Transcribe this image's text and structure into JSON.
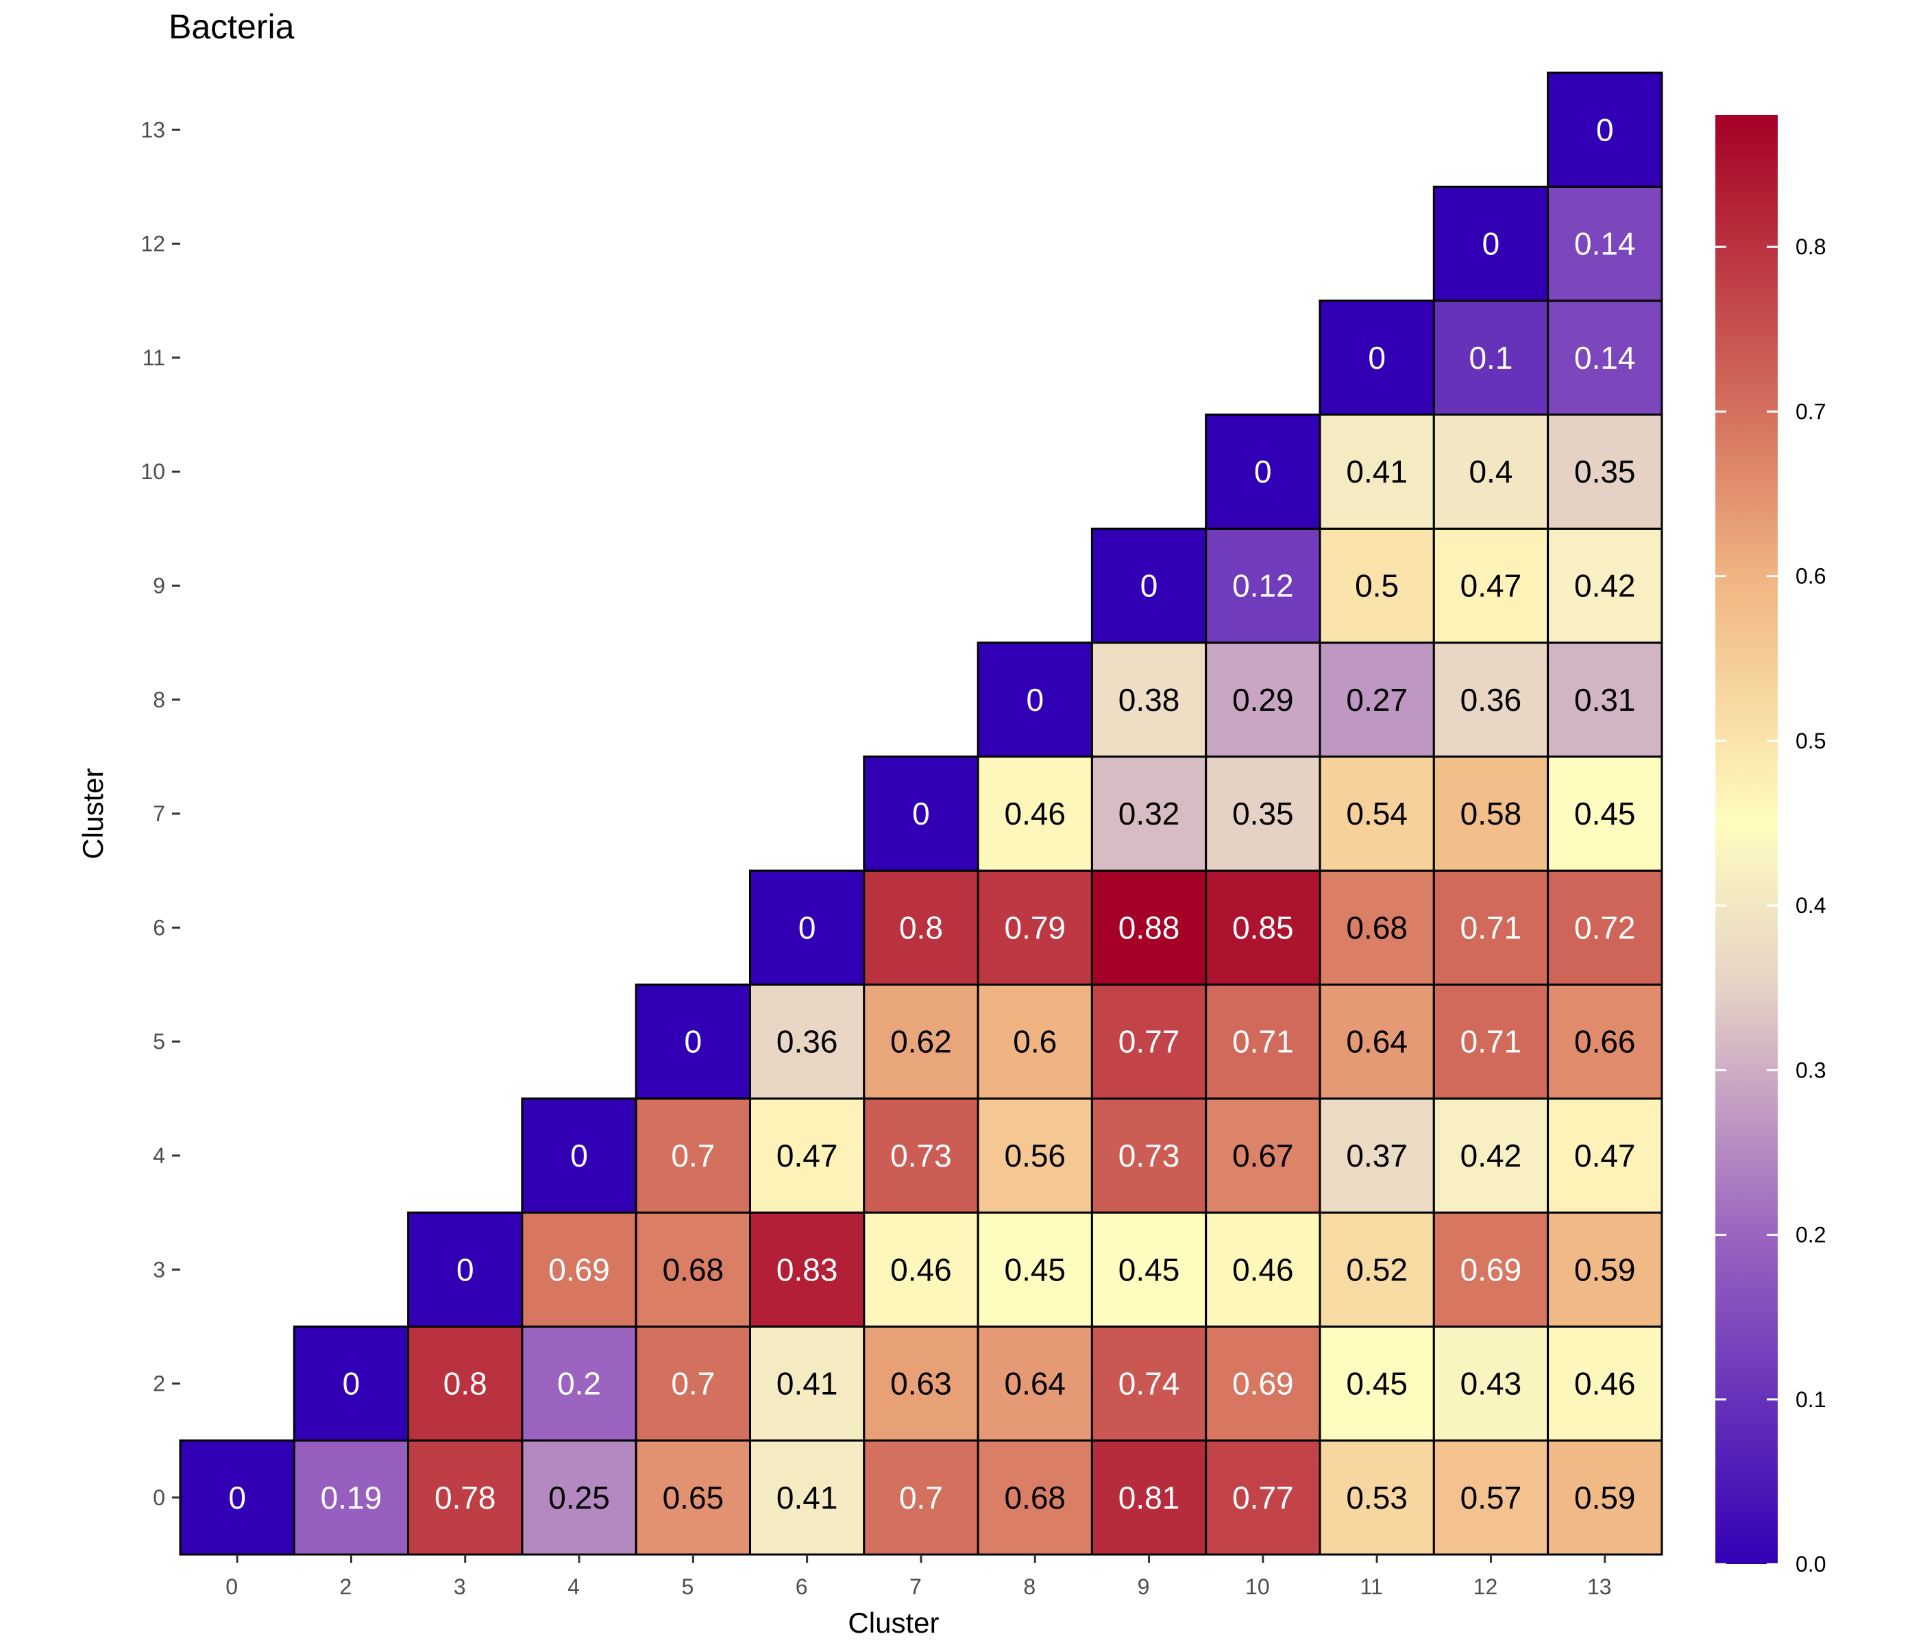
{
  "chart_data": {
    "type": "heatmap",
    "title": "Bacteria",
    "xlabel": "Cluster",
    "ylabel": "Cluster",
    "x_categories": [
      "0",
      "2",
      "3",
      "4",
      "5",
      "6",
      "7",
      "8",
      "9",
      "10",
      "11",
      "12",
      "13"
    ],
    "y_categories": [
      "0",
      "2",
      "3",
      "4",
      "5",
      "6",
      "7",
      "8",
      "9",
      "10",
      "11",
      "12",
      "13"
    ],
    "cells": [
      {
        "y": "0",
        "values": [
          0,
          0.19,
          0.78,
          0.25,
          0.65,
          0.41,
          0.7,
          0.68,
          0.81,
          0.77,
          0.53,
          0.57,
          0.59
        ]
      },
      {
        "y": "2",
        "values": [
          null,
          0,
          0.8,
          0.2,
          0.7,
          0.41,
          0.63,
          0.64,
          0.74,
          0.69,
          0.45,
          0.43,
          0.46
        ]
      },
      {
        "y": "3",
        "values": [
          null,
          null,
          0,
          0.69,
          0.68,
          0.83,
          0.46,
          0.45,
          0.45,
          0.46,
          0.52,
          0.69,
          0.59
        ]
      },
      {
        "y": "4",
        "values": [
          null,
          null,
          null,
          0,
          0.7,
          0.47,
          0.73,
          0.56,
          0.73,
          0.67,
          0.37,
          0.42,
          0.47
        ]
      },
      {
        "y": "5",
        "values": [
          null,
          null,
          null,
          null,
          0,
          0.36,
          0.62,
          0.6,
          0.77,
          0.71,
          0.64,
          0.71,
          0.66
        ]
      },
      {
        "y": "6",
        "values": [
          null,
          null,
          null,
          null,
          null,
          0,
          0.8,
          0.79,
          0.88,
          0.85,
          0.68,
          0.71,
          0.72
        ]
      },
      {
        "y": "7",
        "values": [
          null,
          null,
          null,
          null,
          null,
          null,
          0,
          0.46,
          0.32,
          0.35,
          0.54,
          0.58,
          0.45
        ]
      },
      {
        "y": "8",
        "values": [
          null,
          null,
          null,
          null,
          null,
          null,
          null,
          0,
          0.38,
          0.29,
          0.27,
          0.36,
          0.31
        ]
      },
      {
        "y": "9",
        "values": [
          null,
          null,
          null,
          null,
          null,
          null,
          null,
          null,
          0,
          0.12,
          0.5,
          0.47,
          0.42
        ]
      },
      {
        "y": "10",
        "values": [
          null,
          null,
          null,
          null,
          null,
          null,
          null,
          null,
          null,
          0,
          0.41,
          0.4,
          0.35
        ]
      },
      {
        "y": "11",
        "values": [
          null,
          null,
          null,
          null,
          null,
          null,
          null,
          null,
          null,
          null,
          0,
          0.1,
          0.14
        ]
      },
      {
        "y": "12",
        "values": [
          null,
          null,
          null,
          null,
          null,
          null,
          null,
          null,
          null,
          null,
          null,
          0,
          0.14
        ]
      },
      {
        "y": "13",
        "values": [
          null,
          null,
          null,
          null,
          null,
          null,
          null,
          null,
          null,
          null,
          null,
          null,
          0
        ]
      }
    ],
    "colorbar": {
      "range": [
        0,
        0.88
      ],
      "ticks": [
        "0.0",
        "0.1",
        "0.2",
        "0.3",
        "0.4",
        "0.5",
        "0.6",
        "0.7",
        "0.8"
      ],
      "tick_values": [
        0,
        0.1,
        0.2,
        0.3,
        0.4,
        0.5,
        0.6,
        0.7,
        0.8
      ],
      "colors": [
        "#3200b4",
        "#9b64c0",
        "#e6d2c5",
        "#fffcc0",
        "#f0b482",
        "#d4705e",
        "#a50026"
      ],
      "color_stops": [
        0,
        0.2,
        0.35,
        0.45,
        0.6,
        0.7,
        0.88
      ]
    },
    "legend_position": "right",
    "grid": false
  }
}
